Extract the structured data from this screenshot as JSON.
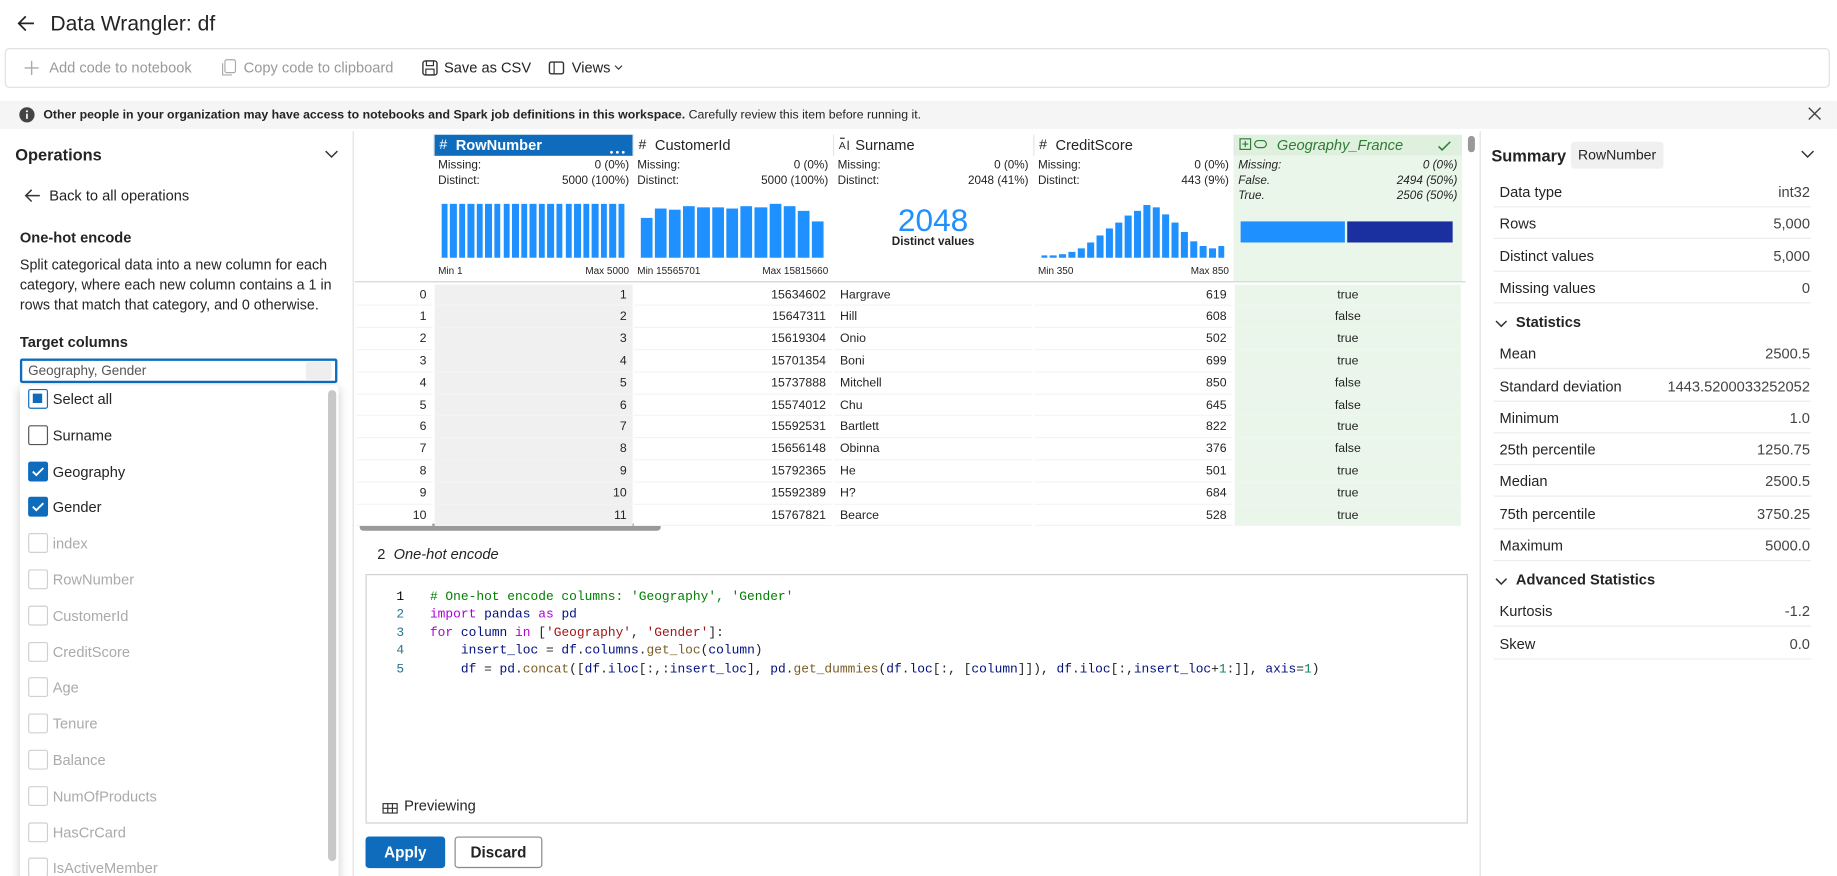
{
  "header": {
    "title": "Data Wrangler: df"
  },
  "toolbar": {
    "items": [
      {
        "label": "Add code to notebook",
        "enabled": false
      },
      {
        "label": "Copy code to clipboard",
        "enabled": false
      },
      {
        "label": "Save as CSV",
        "enabled": true
      },
      {
        "label": "Views",
        "enabled": true
      }
    ]
  },
  "notice": {
    "bold": "Other people in your organization may have access to notebooks and Spark job definitions in this workspace.",
    "text": "Carefully review this item before running it."
  },
  "operations": {
    "title": "Operations",
    "back": "Back to all operations",
    "operation": "One-hot encode",
    "description": "Split categorical data into a new column for each category, where each new column contains a 1 in rows that match that category, and 0 otherwise.",
    "target_label": "Target columns",
    "target_value": "Geography, Gender",
    "options": [
      {
        "label": "Select all",
        "state": "indeterminate"
      },
      {
        "label": "Surname",
        "state": "unchecked"
      },
      {
        "label": "Geography",
        "state": "checked"
      },
      {
        "label": "Gender",
        "state": "checked"
      },
      {
        "label": "index",
        "state": "disabled"
      },
      {
        "label": "RowNumber",
        "state": "disabled"
      },
      {
        "label": "CustomerId",
        "state": "disabled"
      },
      {
        "label": "CreditScore",
        "state": "disabled"
      },
      {
        "label": "Age",
        "state": "disabled"
      },
      {
        "label": "Tenure",
        "state": "disabled"
      },
      {
        "label": "Balance",
        "state": "disabled"
      },
      {
        "label": "NumOfProducts",
        "state": "disabled"
      },
      {
        "label": "HasCrCard",
        "state": "disabled"
      },
      {
        "label": "IsActiveMember",
        "state": "disabled"
      }
    ]
  },
  "grid": {
    "columns": [
      {
        "name": "RowNumber",
        "icon": "#",
        "selected": true,
        "stats": [
          {
            "label": "Missing:",
            "value": "0 (0%)"
          },
          {
            "label": "Distinct:",
            "value": "5000 (100%)"
          }
        ],
        "summary": {
          "kind": "histogram",
          "ylim": [
            0,
            100
          ],
          "bars": [
            92,
            92,
            92,
            92,
            92,
            92,
            92,
            92,
            92,
            92,
            92,
            92,
            92,
            92,
            92,
            92,
            92,
            92,
            92,
            92,
            92
          ],
          "min": "Min 1",
          "max": "Max 5000"
        }
      },
      {
        "name": "CustomerId",
        "icon": "#",
        "stats": [
          {
            "label": "Missing:",
            "value": "0 (0%)"
          },
          {
            "label": "Distinct:",
            "value": "5000 (100%)"
          }
        ],
        "summary": {
          "kind": "histogram",
          "ylim": [
            0,
            100
          ],
          "bars": [
            68,
            85,
            82,
            88,
            86,
            86,
            84,
            88,
            86,
            92,
            88,
            80,
            62
          ],
          "min": "Min 15565701",
          "max": "Max 15815660"
        }
      },
      {
        "name": "Surname",
        "icon": "text",
        "stats": [
          {
            "label": "Missing:",
            "value": "0 (0%)"
          },
          {
            "label": "Distinct:",
            "value": "2048 (41%)"
          }
        ],
        "summary": {
          "kind": "distinct",
          "big": "2048",
          "caption": "Distinct values"
        }
      },
      {
        "name": "CreditScore",
        "icon": "#",
        "stats": [
          {
            "label": "Missing:",
            "value": "0 (0%)"
          },
          {
            "label": "Distinct:",
            "value": "443 (9%)"
          }
        ],
        "summary": {
          "kind": "histogram",
          "ylim": [
            0,
            100
          ],
          "bars": [
            4,
            4,
            6,
            10,
            16,
            26,
            38,
            50,
            60,
            72,
            80,
            90,
            86,
            74,
            60,
            44,
            28,
            20,
            16,
            20
          ],
          "min": "Min 350",
          "max": "Max 850"
        }
      },
      {
        "name": "Geography_France",
        "icon": "new",
        "added": true,
        "stats": [
          {
            "label": "Missing:",
            "value": "0 (0%)"
          },
          {
            "label": "False.",
            "value": "2494 (50%)"
          },
          {
            "label": "True.",
            "value": "2506 (50%)"
          }
        ],
        "summary": {
          "kind": "boolean",
          "split": [
            2494,
            2506
          ],
          "colors": [
            "#1e90ff",
            "#1a2fa0"
          ]
        }
      }
    ],
    "rows": [
      [
        0,
        1,
        15634602,
        "Hargrave",
        619,
        "true"
      ],
      [
        1,
        2,
        15647311,
        "Hill",
        608,
        "false"
      ],
      [
        2,
        3,
        15619304,
        "Onio",
        502,
        "true"
      ],
      [
        3,
        4,
        15701354,
        "Boni",
        699,
        "true"
      ],
      [
        4,
        5,
        15737888,
        "Mitchell",
        850,
        "false"
      ],
      [
        5,
        6,
        15574012,
        "Chu",
        645,
        "false"
      ],
      [
        6,
        7,
        15592531,
        "Bartlett",
        822,
        "true"
      ],
      [
        7,
        8,
        15656148,
        "Obinna",
        376,
        "false"
      ],
      [
        8,
        9,
        15792365,
        "He",
        501,
        "true"
      ],
      [
        9,
        10,
        15592389,
        "H?",
        684,
        "true"
      ],
      [
        10,
        11,
        15767821,
        "Bearce",
        528,
        "true"
      ]
    ]
  },
  "code": {
    "step": "2",
    "title": "One-hot encode",
    "lines": [
      [
        [
          "# One-hot encode columns: 'Geography', 'Gender'",
          "c"
        ]
      ],
      [
        [
          "import",
          "k"
        ],
        [
          " ",
          "p"
        ],
        [
          "pandas",
          "v"
        ],
        [
          " ",
          "p"
        ],
        [
          "as",
          "k"
        ],
        [
          " ",
          "p"
        ],
        [
          "pd",
          "v"
        ]
      ],
      [
        [
          "for",
          "k"
        ],
        [
          " ",
          "p"
        ],
        [
          "column",
          "v"
        ],
        [
          " ",
          "p"
        ],
        [
          "in",
          "k"
        ],
        [
          " [",
          "p"
        ],
        [
          "'Geography'",
          "s"
        ],
        [
          ", ",
          "p"
        ],
        [
          "'Gender'",
          "s"
        ],
        [
          "]:",
          "p"
        ]
      ],
      [
        [
          "    insert_loc",
          "v"
        ],
        [
          " = ",
          "p"
        ],
        [
          "df",
          "v"
        ],
        [
          ".",
          "p"
        ],
        [
          "columns",
          "v"
        ],
        [
          ".",
          "p"
        ],
        [
          "get_loc",
          "f"
        ],
        [
          "(",
          "p"
        ],
        [
          "column",
          "v"
        ],
        [
          ")",
          "p"
        ]
      ],
      [
        [
          "    df",
          "v"
        ],
        [
          " = ",
          "p"
        ],
        [
          "pd",
          "v"
        ],
        [
          ".",
          "p"
        ],
        [
          "concat",
          "f"
        ],
        [
          "([",
          "p"
        ],
        [
          "df",
          "v"
        ],
        [
          ".",
          "p"
        ],
        [
          "iloc",
          "v"
        ],
        [
          "[:,:",
          "p"
        ],
        [
          "insert_loc",
          "v"
        ],
        [
          "], ",
          "p"
        ],
        [
          "pd",
          "v"
        ],
        [
          ".",
          "p"
        ],
        [
          "get_dummies",
          "f"
        ],
        [
          "(",
          "p"
        ],
        [
          "df",
          "v"
        ],
        [
          ".",
          "p"
        ],
        [
          "loc",
          "v"
        ],
        [
          "[:, [",
          "p"
        ],
        [
          "column",
          "v"
        ],
        [
          "]]), ",
          "p"
        ],
        [
          "df",
          "v"
        ],
        [
          ".",
          "p"
        ],
        [
          "iloc",
          "v"
        ],
        [
          "[:,",
          "p"
        ],
        [
          "insert_loc",
          "v"
        ],
        [
          "+",
          "p"
        ],
        [
          "1",
          "n"
        ],
        [
          ":]], ",
          "p"
        ],
        [
          "axis",
          "v"
        ],
        [
          "=",
          "p"
        ],
        [
          "1",
          "n"
        ],
        [
          ")",
          "p"
        ]
      ]
    ],
    "status": "Previewing",
    "apply": "Apply",
    "discard": "Discard"
  },
  "summary": {
    "title": "Summary",
    "column": "RowNumber",
    "basic": [
      {
        "label": "Data type",
        "value": "int32"
      },
      {
        "label": "Rows",
        "value": "5,000"
      },
      {
        "label": "Distinct values",
        "value": "5,000"
      },
      {
        "label": "Missing values",
        "value": "0"
      }
    ],
    "sections": [
      {
        "title": "Statistics",
        "rows": [
          {
            "label": "Mean",
            "value": "2500.5"
          },
          {
            "label": "Standard deviation",
            "value": "1443.5200033252052"
          },
          {
            "label": "Minimum",
            "value": "1.0"
          },
          {
            "label": "25th percentile",
            "value": "1250.75"
          },
          {
            "label": "Median",
            "value": "2500.5"
          },
          {
            "label": "75th percentile",
            "value": "3750.25"
          },
          {
            "label": "Maximum",
            "value": "5000.0"
          }
        ]
      },
      {
        "title": "Advanced Statistics",
        "rows": [
          {
            "label": "Kurtosis",
            "value": "-1.2"
          },
          {
            "label": "Skew",
            "value": "0.0"
          }
        ]
      }
    ]
  }
}
